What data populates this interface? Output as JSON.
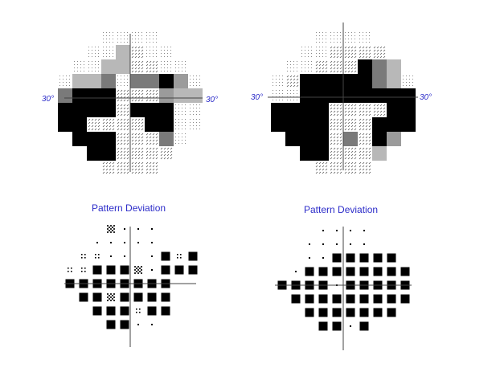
{
  "labels": {
    "axis_ecc": "30°",
    "pattern_title": "Pattern Deviation"
  },
  "colors": {
    "title": "#2c2cc9",
    "axis": "#444444",
    "black": "#000000",
    "dark_gray": "#7a7a7a",
    "light_gray": "#b8b8b8",
    "hatch": "#555555"
  },
  "grayscale_maps": [
    {
      "eye": "left",
      "rows": [
        "   ....   ",
        "  ..Lh..  ",
        " ..LLhh.. ",
        ".LLD.DDBG.",
        "DBBBhhhGLL",
        "BBBBhBBB..",
        "BBhhhhBB..",
        " BBBhhhD. ",
        "  BBhhhh  ",
        "   hhhh   "
      ]
    },
    {
      "eye": "right",
      "rows": [
        "   ....   ",
        "  ..hhhh  ",
        " ..hhhBDL ",
        ".hBBBBBDL.",
        "..BBBBBBBB",
        "BBBBhhhhBB",
        "BBBBhhhBBB",
        " BBBhDhBG ",
        "  BBhhhL  ",
        "   hhhh   "
      ]
    }
  ],
  "pattern_deviation": [
    {
      "eye": "left",
      "rows": [
        "   S...  ",
        "  .....  ",
        " ::.. .B:B",
        "::BBBS.BBB",
        "BBBBBBBB  ",
        " BBSBBBB  ",
        "  BBB:BB  ",
        "   BB..   "
      ]
    },
    {
      "eye": "right",
      "rows": [
        "   ....  ",
        "  .....  ",
        "  ..BBBBB",
        " .BBBBBBBB",
        "BBBB.BBBBB",
        " BBBBBBBBB",
        "  BBBBBBB ",
        "   BB.B   "
      ]
    }
  ]
}
